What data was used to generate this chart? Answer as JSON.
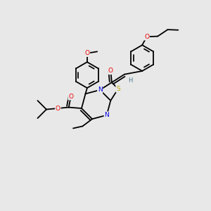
{
  "background_color": "#e8e8e8",
  "fig_width": 3.0,
  "fig_height": 3.0,
  "dpi": 100,
  "bond_color": "#000000",
  "bond_lw": 1.3,
  "atom_colors": {
    "N": "#0000ee",
    "O": "#ee0000",
    "S": "#bbaa00",
    "H": "#4a7a8a",
    "C": "#000000"
  },
  "font_size": 6.5
}
